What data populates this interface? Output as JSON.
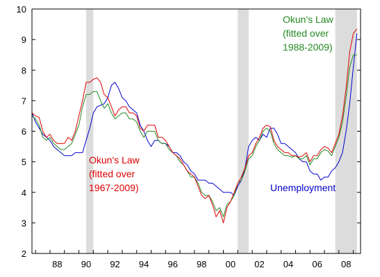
{
  "chart_data": {
    "type": "line",
    "title": "",
    "xlabel": "",
    "ylabel": "",
    "xlim": [
      1986.75,
      2009.5
    ],
    "ylim": [
      2,
      10
    ],
    "grid": false,
    "y_ticks": [
      2,
      3,
      4,
      5,
      6,
      7,
      8,
      9,
      10
    ],
    "x_ticks": [
      {
        "year": 1988,
        "label": "88"
      },
      {
        "year": 1990,
        "label": "90"
      },
      {
        "year": 1992,
        "label": "92"
      },
      {
        "year": 1994,
        "label": "94"
      },
      {
        "year": 1996,
        "label": "96"
      },
      {
        "year": 1998,
        "label": "98"
      },
      {
        "year": 2000,
        "label": "00"
      },
      {
        "year": 2002,
        "label": "02"
      },
      {
        "year": 2004,
        "label": "04"
      },
      {
        "year": 2006,
        "label": "06"
      },
      {
        "year": 2008,
        "label": "08"
      }
    ],
    "recessions": [
      {
        "start": 1990.5,
        "end": 1991.0
      },
      {
        "start": 2001.0,
        "end": 2001.75
      },
      {
        "start": 2007.75,
        "end": 2009.25
      }
    ],
    "x": [
      1986.75,
      1987.0,
      1987.25,
      1987.5,
      1987.75,
      1988.0,
      1988.25,
      1988.5,
      1988.75,
      1989.0,
      1989.25,
      1989.5,
      1989.75,
      1990.0,
      1990.25,
      1990.5,
      1990.75,
      1991.0,
      1991.25,
      1991.5,
      1991.75,
      1992.0,
      1992.25,
      1992.5,
      1992.75,
      1993.0,
      1993.25,
      1993.5,
      1993.75,
      1994.0,
      1994.25,
      1994.5,
      1994.75,
      1995.0,
      1995.25,
      1995.5,
      1995.75,
      1996.0,
      1996.25,
      1996.5,
      1996.75,
      1997.0,
      1997.25,
      1997.5,
      1997.75,
      1998.0,
      1998.25,
      1998.5,
      1998.75,
      1999.0,
      1999.25,
      1999.5,
      1999.75,
      2000.0,
      2000.25,
      2000.5,
      2000.75,
      2001.0,
      2001.25,
      2001.5,
      2001.75,
      2002.0,
      2002.25,
      2002.5,
      2002.75,
      2003.0,
      2003.25,
      2003.5,
      2003.75,
      2004.0,
      2004.25,
      2004.5,
      2004.75,
      2005.0,
      2005.25,
      2005.5,
      2005.75,
      2006.0,
      2006.25,
      2006.5,
      2006.75,
      2007.0,
      2007.25,
      2007.5,
      2007.75,
      2008.0,
      2008.25,
      2008.5,
      2008.75,
      2009.0,
      2009.25
    ],
    "series": [
      {
        "name": "Unemployment",
        "color": "#0000cc",
        "values": [
          6.6,
          6.3,
          6.1,
          5.9,
          5.8,
          5.7,
          5.5,
          5.4,
          5.3,
          5.2,
          5.2,
          5.2,
          5.3,
          5.3,
          5.3,
          5.7,
          6.1,
          6.6,
          6.8,
          6.85,
          6.9,
          7.1,
          7.5,
          7.6,
          7.4,
          7.1,
          7.0,
          6.8,
          6.7,
          6.6,
          6.2,
          6.0,
          5.7,
          5.5,
          5.7,
          5.7,
          5.6,
          5.6,
          5.5,
          5.3,
          5.3,
          5.2,
          5.0,
          4.9,
          4.7,
          4.6,
          4.4,
          4.4,
          4.4,
          4.3,
          4.3,
          4.2,
          4.1,
          4.0,
          4.0,
          4.0,
          3.9,
          4.2,
          4.4,
          4.8,
          5.5,
          5.7,
          5.8,
          5.7,
          5.9,
          5.8,
          6.1,
          6.1,
          5.9,
          5.6,
          5.6,
          5.5,
          5.4,
          5.3,
          5.1,
          5.0,
          5.0,
          4.7,
          4.6,
          4.6,
          4.4,
          4.5,
          4.5,
          4.7,
          4.8,
          5.0,
          5.3,
          6.0,
          6.9,
          8.1,
          9.2
        ]
      },
      {
        "name": "Okun's Law (fitted over 1967-2009)",
        "color": "#dd0000",
        "values": [
          6.6,
          6.5,
          6.45,
          6.0,
          5.8,
          5.9,
          5.7,
          5.6,
          5.6,
          5.6,
          5.8,
          5.7,
          6.0,
          6.5,
          7.0,
          7.6,
          7.6,
          7.7,
          7.75,
          7.6,
          7.2,
          7.1,
          6.8,
          6.5,
          6.7,
          6.8,
          6.8,
          6.6,
          6.6,
          6.5,
          6.1,
          6.0,
          6.2,
          6.2,
          6.2,
          5.8,
          5.8,
          5.7,
          5.5,
          5.3,
          5.2,
          5.1,
          4.9,
          4.7,
          4.6,
          4.5,
          4.2,
          3.9,
          3.8,
          3.9,
          3.6,
          3.2,
          3.4,
          3.0,
          3.5,
          3.7,
          4.0,
          4.3,
          4.5,
          4.8,
          5.2,
          5.3,
          5.6,
          5.8,
          6.1,
          6.2,
          6.15,
          5.7,
          5.5,
          5.4,
          5.3,
          5.3,
          5.2,
          5.2,
          5.15,
          5.2,
          5.3,
          5.0,
          5.2,
          5.2,
          5.4,
          5.5,
          5.45,
          5.3,
          5.6,
          5.9,
          6.5,
          7.4,
          8.6,
          9.2,
          9.35
        ]
      },
      {
        "name": "Okun's Law (fitted over 1988-2009)",
        "color": "#228822",
        "values": [
          6.5,
          6.4,
          6.2,
          5.8,
          5.7,
          5.8,
          5.6,
          5.5,
          5.4,
          5.4,
          5.5,
          5.6,
          5.9,
          6.2,
          6.8,
          7.2,
          7.2,
          7.3,
          7.3,
          7.0,
          6.75,
          6.9,
          6.6,
          6.4,
          6.5,
          6.6,
          6.6,
          6.4,
          6.4,
          6.3,
          6.0,
          5.8,
          6.0,
          6.0,
          6.0,
          5.7,
          5.6,
          5.6,
          5.4,
          5.3,
          5.2,
          5.0,
          4.9,
          4.7,
          4.5,
          4.5,
          4.3,
          4.0,
          3.9,
          3.9,
          3.7,
          3.4,
          3.5,
          3.2,
          3.6,
          3.7,
          3.9,
          4.3,
          4.4,
          4.7,
          5.1,
          5.2,
          5.5,
          5.7,
          6.0,
          6.1,
          6.0,
          5.6,
          5.4,
          5.3,
          5.2,
          5.2,
          5.15,
          5.2,
          5.1,
          5.1,
          5.2,
          4.9,
          5.1,
          5.1,
          5.3,
          5.4,
          5.35,
          5.2,
          5.5,
          5.8,
          6.3,
          7.1,
          8.1,
          8.5,
          8.5
        ]
      }
    ],
    "annotations": [
      {
        "series": 2,
        "lines": [
          "Okun's Law",
          "(fitted over",
          "1988-2009)"
        ]
      },
      {
        "series": 1,
        "lines": [
          "Okun's Law",
          "(fitted over",
          "1967-2009)"
        ]
      },
      {
        "series": 0,
        "lines": [
          "Unemployment"
        ]
      }
    ]
  }
}
